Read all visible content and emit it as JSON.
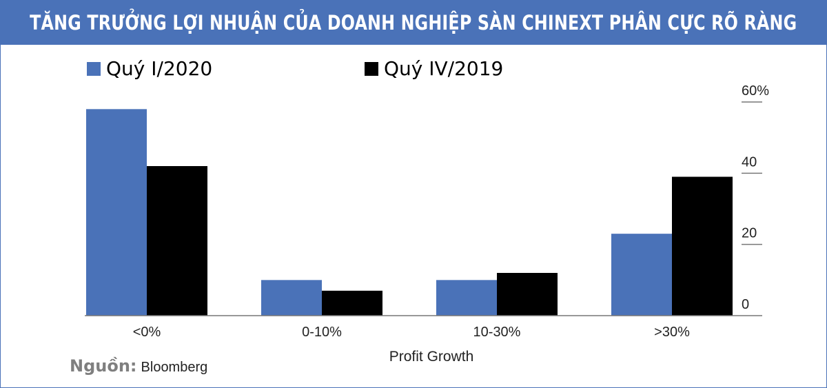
{
  "header": {
    "title": "TĂNG TRƯỞNG LỢI NHUẬN CỦA DOANH NGHIỆP SÀN CHINEXT PHÂN CỰC RÕ RÀNG"
  },
  "colors": {
    "accent": "#4a72b8",
    "series_1": "#4a72b8",
    "series_2": "#000000"
  },
  "chart_data": {
    "type": "bar",
    "categories": [
      "<0%",
      "0-10%",
      "10-30%",
      ">30%"
    ],
    "series": [
      {
        "name": "Quý I/2020",
        "values": [
          58,
          10,
          10,
          23
        ]
      },
      {
        "name": "Quý IV/2019",
        "values": [
          42,
          7,
          12,
          39
        ]
      }
    ],
    "xlabel": "Profit Growth",
    "ylabel": "",
    "ylim": [
      0,
      60
    ],
    "yticks": [
      "0",
      "20",
      "40",
      "60%"
    ],
    "y_axis_position": "right",
    "legend_position": "top-left",
    "grid": false
  },
  "source": {
    "label": "Nguồn:",
    "value": "Bloomberg"
  }
}
